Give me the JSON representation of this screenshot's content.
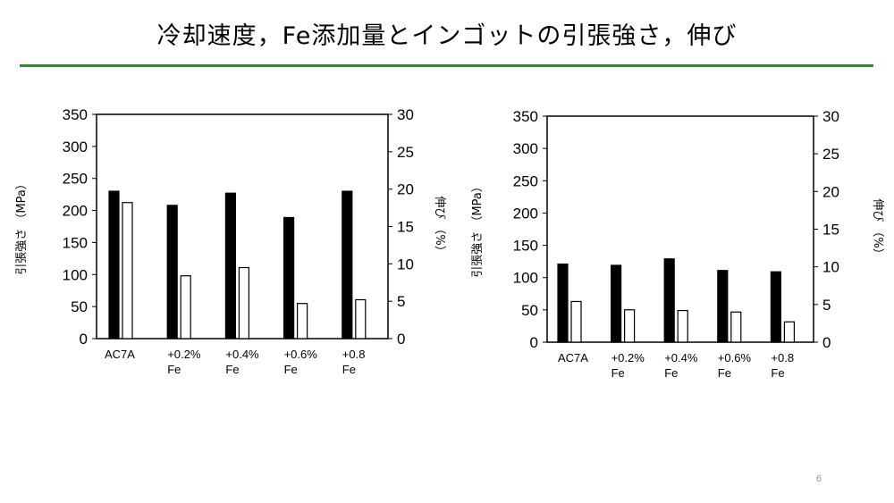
{
  "slide": {
    "title": "冷却速度，Fe添加量とインゴットの引張強さ，伸び",
    "page_number": "6"
  },
  "chart_data": [
    {
      "type": "bar",
      "categories": [
        [
          "AC7A"
        ],
        [
          "+0.2%",
          "Fe"
        ],
        [
          "+0.4%",
          "Fe"
        ],
        [
          "+0.6%",
          "Fe"
        ],
        [
          "+0.8",
          "Fe"
        ]
      ],
      "ylabel": "引張強さ （MPa）",
      "y2label": "伸び （%）",
      "ylim": [
        0,
        350
      ],
      "y2lim": [
        0,
        30
      ],
      "yticks": [
        0,
        50,
        100,
        150,
        200,
        250,
        300,
        350
      ],
      "y2ticks": [
        0,
        5,
        10,
        15,
        20,
        25,
        30
      ],
      "grid": false,
      "series": [
        {
          "axis": "left",
          "color": "#000000",
          "values": [
            230,
            208,
            227,
            189,
            230
          ]
        },
        {
          "axis": "right",
          "color": "#ffffff",
          "values": [
            18.2,
            8.4,
            9.5,
            4.7,
            5.2
          ]
        }
      ]
    },
    {
      "type": "bar",
      "categories": [
        [
          "AC7A"
        ],
        [
          "+0.2%",
          "Fe"
        ],
        [
          "+0.4%",
          "Fe"
        ],
        [
          "+0.6%",
          "Fe"
        ],
        [
          "+0.8",
          "Fe"
        ]
      ],
      "ylabel": "引張強さ （MPa）",
      "y2label": "伸び （%）",
      "ylim": [
        0,
        350
      ],
      "y2lim": [
        0,
        30
      ],
      "yticks": [
        0,
        50,
        100,
        150,
        200,
        250,
        300,
        350
      ],
      "y2ticks": [
        0,
        5,
        10,
        15,
        20,
        25,
        30
      ],
      "grid": false,
      "series": [
        {
          "axis": "left",
          "color": "#000000",
          "values": [
            121,
            119,
            129,
            111,
            109
          ]
        },
        {
          "axis": "right",
          "color": "#ffffff",
          "values": [
            5.4,
            4.3,
            4.2,
            4.0,
            2.7
          ]
        }
      ]
    }
  ]
}
